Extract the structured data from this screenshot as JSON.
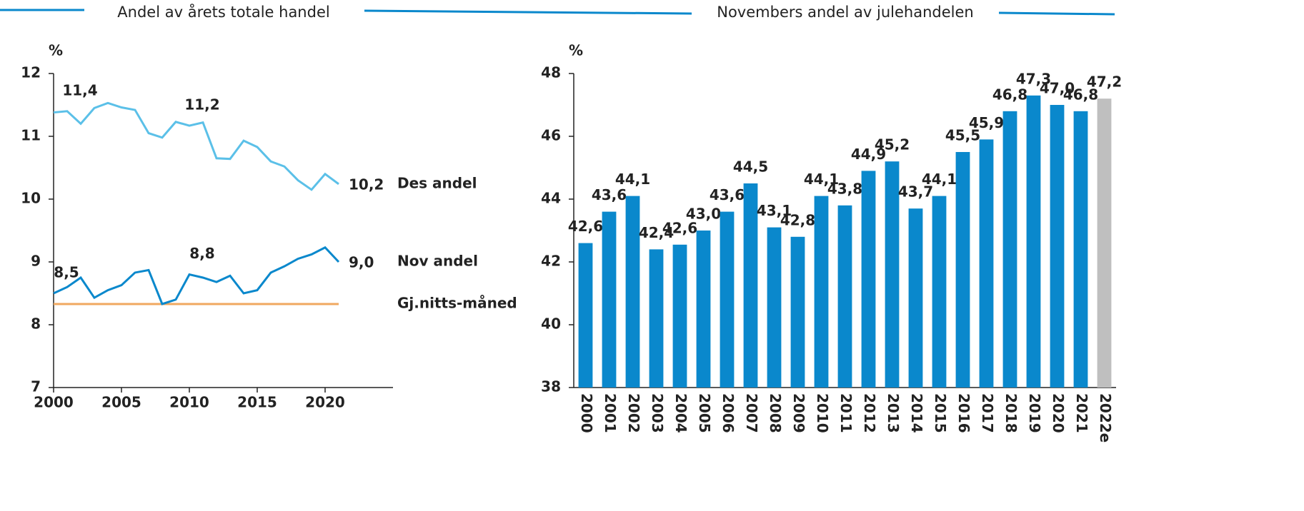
{
  "chart_data": [
    {
      "type": "line",
      "title": "Andel av årets totale handel",
      "ylabel": "%",
      "x": [
        2000,
        2001,
        2002,
        2003,
        2004,
        2005,
        2006,
        2007,
        2008,
        2009,
        2010,
        2011,
        2012,
        2013,
        2014,
        2015,
        2016,
        2017,
        2018,
        2019,
        2020,
        2021
      ],
      "series": [
        {
          "name": "Des andel",
          "color": "#5bc0e8",
          "values": [
            11.38,
            11.4,
            11.2,
            11.45,
            11.53,
            11.46,
            11.42,
            11.05,
            10.98,
            11.23,
            11.17,
            11.22,
            10.65,
            10.64,
            10.93,
            10.83,
            10.6,
            10.52,
            10.3,
            10.15,
            10.4,
            10.24
          ],
          "value_labels": [
            null,
            "11,4",
            null,
            null,
            null,
            null,
            null,
            null,
            null,
            null,
            "11,2",
            null,
            null,
            null,
            null,
            null,
            null,
            null,
            null,
            null,
            null,
            "10,2"
          ]
        },
        {
          "name": "Nov andel",
          "color": "#0a88cc",
          "values": [
            8.5,
            8.6,
            8.75,
            8.43,
            8.55,
            8.63,
            8.83,
            8.87,
            8.33,
            8.4,
            8.8,
            8.75,
            8.68,
            8.78,
            8.5,
            8.55,
            8.83,
            8.93,
            9.05,
            9.12,
            9.23,
            9.0
          ],
          "value_labels": [
            "8,5",
            null,
            null,
            null,
            null,
            null,
            null,
            null,
            null,
            null,
            "8,8",
            null,
            null,
            null,
            null,
            null,
            null,
            null,
            null,
            null,
            null,
            "9,0"
          ]
        }
      ],
      "reference": {
        "name": "Gj.nitts-måned",
        "value": 8.33,
        "color": "#f0a860"
      },
      "xlim": [
        2000,
        2025
      ],
      "xticks": [
        2000,
        2005,
        2010,
        2015,
        2020
      ],
      "ylim": [
        7,
        12
      ],
      "yticks": [
        7,
        8,
        9,
        10,
        11,
        12
      ]
    },
    {
      "type": "bar",
      "title": "Novembers andel av julehandelen",
      "ylabel": "%",
      "categories": [
        "2000",
        "2001",
        "2002",
        "2003",
        "2004",
        "2005",
        "2006",
        "2007",
        "2008",
        "2009",
        "2010",
        "2011",
        "2012",
        "2013",
        "2014",
        "2015",
        "2016",
        "2017",
        "2018",
        "2019",
        "2020",
        "2021",
        "2022e"
      ],
      "values": [
        42.6,
        43.6,
        44.1,
        42.4,
        42.55,
        43.0,
        43.6,
        44.5,
        43.1,
        42.8,
        44.1,
        43.8,
        44.9,
        45.2,
        43.7,
        44.1,
        45.5,
        45.9,
        46.8,
        47.3,
        47.0,
        46.8,
        47.2
      ],
      "value_labels": [
        "42,6",
        "43,6",
        "44,1",
        "42,4",
        "42,6",
        "43,0",
        "43,6",
        "44,5",
        "43,1",
        "42,8",
        "44,1",
        "43,8",
        "44,9",
        "45,2",
        "43,7",
        "44,1",
        "45,5",
        "45,9",
        "46,8",
        "47,3",
        "47,0",
        "46,8",
        "47,2"
      ],
      "colors": [
        "#0a88cc",
        "#0a88cc",
        "#0a88cc",
        "#0a88cc",
        "#0a88cc",
        "#0a88cc",
        "#0a88cc",
        "#0a88cc",
        "#0a88cc",
        "#0a88cc",
        "#0a88cc",
        "#0a88cc",
        "#0a88cc",
        "#0a88cc",
        "#0a88cc",
        "#0a88cc",
        "#0a88cc",
        "#0a88cc",
        "#0a88cc",
        "#0a88cc",
        "#0a88cc",
        "#0a88cc",
        "#bfbfbf"
      ],
      "ylim": [
        38,
        48
      ],
      "yticks": [
        38,
        40,
        42,
        44,
        46,
        48
      ]
    }
  ]
}
